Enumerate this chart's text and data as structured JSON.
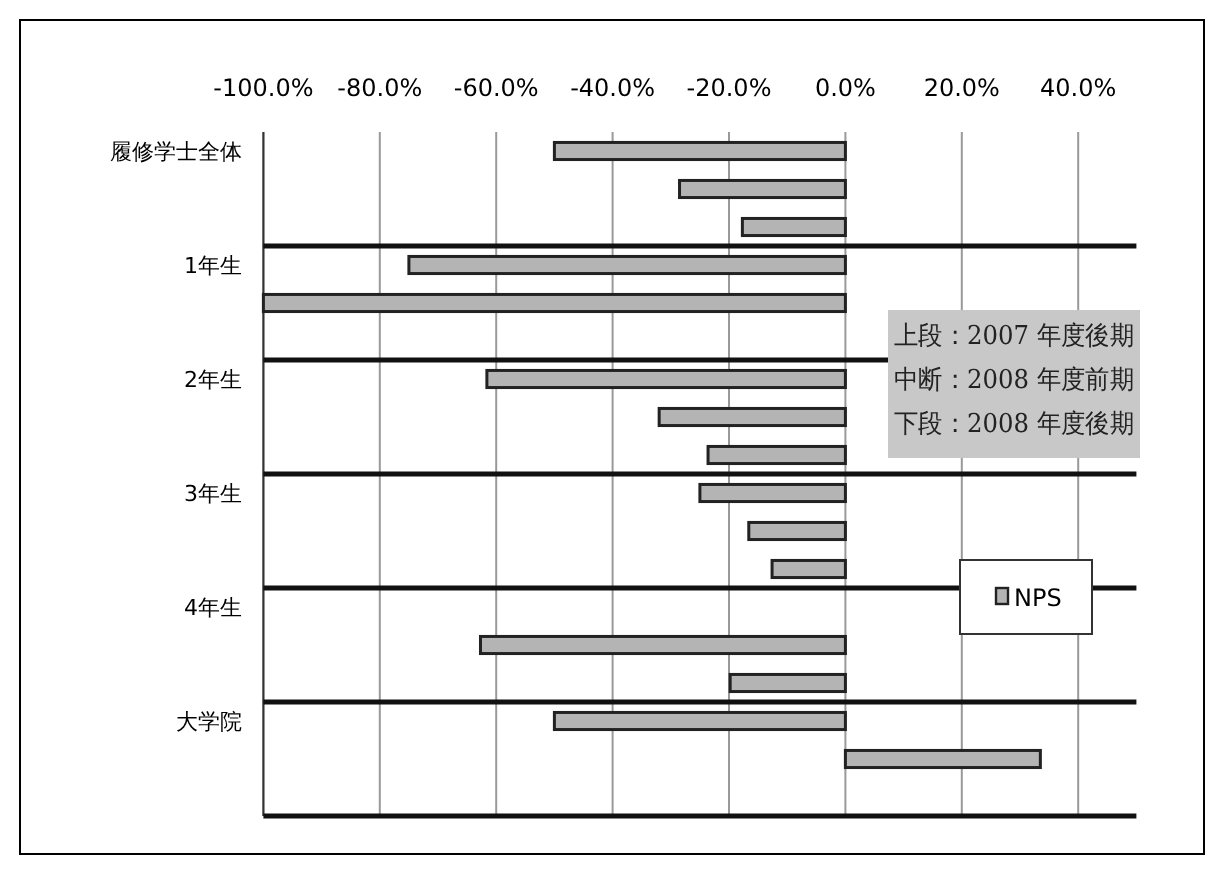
{
  "chart_data": {
    "type": "bar",
    "orientation": "horizontal",
    "categories": [
      "履修学士全体",
      null,
      null,
      "1年生",
      null,
      null,
      "2年生",
      null,
      null,
      "3年生",
      null,
      null,
      "4年生",
      null,
      null,
      "大学院",
      null,
      null
    ],
    "series": [
      {
        "name": "NPS",
        "color": "#b4b4b4",
        "values": [
          -50,
          -28.5,
          -17.7,
          -75,
          -100,
          null,
          -61.6,
          -32,
          -23.6,
          -25,
          -16.6,
          -12.6,
          null,
          -62.7,
          -19.8,
          -50,
          33.5,
          null
        ]
      }
    ],
    "xlim": [
      -100,
      50
    ],
    "xticks": [
      {
        "value": -100,
        "label": "-100.0%"
      },
      {
        "value": -80,
        "label": "-80.0%"
      },
      {
        "value": -60,
        "label": "-60.0%"
      },
      {
        "value": -40,
        "label": "-40.0%"
      },
      {
        "value": -20,
        "label": "-20.0%"
      },
      {
        "value": 0,
        "label": "0.0%"
      },
      {
        "value": 20,
        "label": "20.0%"
      },
      {
        "value": 40,
        "label": "40.0%"
      }
    ],
    "grid": true,
    "legend": "right",
    "annotations": [
      "上段：2007 年度後期",
      "中断：2008 年度前期",
      "下段：2008 年度後期"
    ]
  }
}
